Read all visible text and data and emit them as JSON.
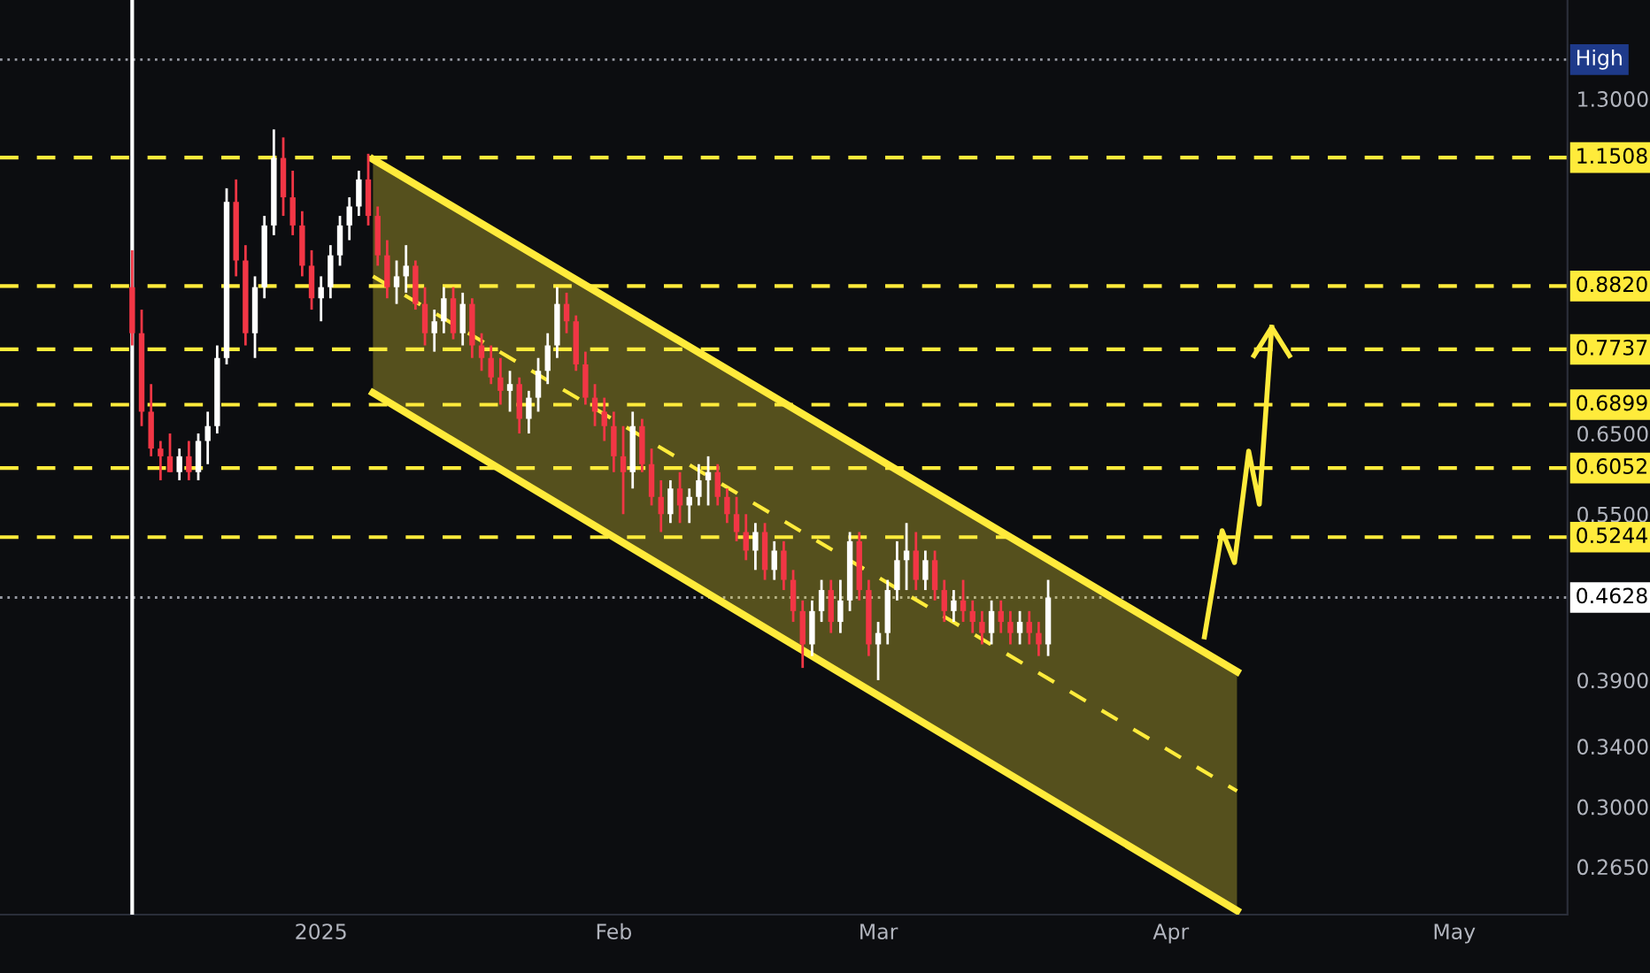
{
  "chart_data": {
    "type": "candlestick",
    "x": [
      "2024-12-12",
      "2024-12-13",
      "2024-12-14",
      "2024-12-15",
      "2024-12-16",
      "2024-12-17",
      "2024-12-18",
      "2024-12-19",
      "2024-12-20",
      "2024-12-21",
      "2024-12-22",
      "2024-12-23",
      "2024-12-24",
      "2024-12-25",
      "2024-12-26",
      "2024-12-27",
      "2024-12-28",
      "2024-12-29",
      "2024-12-30",
      "2024-12-31",
      "2025-01-01",
      "2025-01-02",
      "2025-01-03",
      "2025-01-04",
      "2025-01-05",
      "2025-01-06",
      "2025-01-07",
      "2025-01-08",
      "2025-01-09",
      "2025-01-10",
      "2025-01-11",
      "2025-01-12",
      "2025-01-13",
      "2025-01-14",
      "2025-01-15",
      "2025-01-16",
      "2025-01-17",
      "2025-01-18",
      "2025-01-19",
      "2025-01-20",
      "2025-01-21",
      "2025-01-22",
      "2025-01-23",
      "2025-01-24",
      "2025-01-25",
      "2025-01-26",
      "2025-01-27",
      "2025-01-28",
      "2025-01-29",
      "2025-01-30",
      "2025-01-31",
      "2025-02-01",
      "2025-02-02",
      "2025-02-03",
      "2025-02-04",
      "2025-02-05",
      "2025-02-06",
      "2025-02-07",
      "2025-02-08",
      "2025-02-09",
      "2025-02-10",
      "2025-02-11",
      "2025-02-12",
      "2025-02-13",
      "2025-02-14",
      "2025-02-15",
      "2025-02-16",
      "2025-02-17",
      "2025-02-18",
      "2025-02-19",
      "2025-02-20",
      "2025-02-21",
      "2025-02-22",
      "2025-02-23",
      "2025-02-24",
      "2025-02-25",
      "2025-02-26",
      "2025-02-27",
      "2025-02-28",
      "2025-03-01",
      "2025-03-02",
      "2025-03-03",
      "2025-03-04",
      "2025-03-05",
      "2025-03-06",
      "2025-03-07",
      "2025-03-08",
      "2025-03-09",
      "2025-03-10",
      "2025-03-11",
      "2025-03-12",
      "2025-03-13",
      "2025-03-14",
      "2025-03-15",
      "2025-03-16",
      "2025-03-17",
      "2025-03-18",
      "2025-03-19"
    ],
    "ohlc": [
      [
        0.88,
        0.95,
        0.78,
        0.8
      ],
      [
        0.8,
        0.84,
        0.66,
        0.68
      ],
      [
        0.68,
        0.72,
        0.62,
        0.63
      ],
      [
        0.63,
        0.64,
        0.59,
        0.62
      ],
      [
        0.62,
        0.65,
        0.6,
        0.6
      ],
      [
        0.6,
        0.63,
        0.59,
        0.62
      ],
      [
        0.62,
        0.64,
        0.59,
        0.6
      ],
      [
        0.6,
        0.65,
        0.59,
        0.64
      ],
      [
        0.64,
        0.68,
        0.61,
        0.66
      ],
      [
        0.66,
        0.78,
        0.65,
        0.76
      ],
      [
        0.76,
        1.08,
        0.75,
        1.05
      ],
      [
        1.05,
        1.1,
        0.9,
        0.93
      ],
      [
        0.93,
        0.96,
        0.78,
        0.8
      ],
      [
        0.8,
        0.9,
        0.76,
        0.88
      ],
      [
        0.88,
        1.02,
        0.86,
        1.0
      ],
      [
        1.0,
        1.22,
        0.98,
        1.15
      ],
      [
        1.15,
        1.2,
        1.02,
        1.06
      ],
      [
        1.06,
        1.12,
        0.98,
        1.0
      ],
      [
        1.0,
        1.03,
        0.9,
        0.92
      ],
      [
        0.92,
        0.95,
        0.84,
        0.86
      ],
      [
        0.86,
        0.9,
        0.82,
        0.88
      ],
      [
        0.88,
        0.96,
        0.86,
        0.94
      ],
      [
        0.94,
        1.02,
        0.92,
        1.0
      ],
      [
        1.0,
        1.06,
        0.97,
        1.04
      ],
      [
        1.04,
        1.12,
        1.02,
        1.1
      ],
      [
        1.1,
        1.16,
        1.0,
        1.02
      ],
      [
        1.02,
        1.04,
        0.92,
        0.94
      ],
      [
        0.94,
        0.97,
        0.86,
        0.88
      ],
      [
        0.88,
        0.93,
        0.85,
        0.9
      ],
      [
        0.9,
        0.96,
        0.87,
        0.92
      ],
      [
        0.92,
        0.93,
        0.84,
        0.85
      ],
      [
        0.85,
        0.88,
        0.78,
        0.8
      ],
      [
        0.8,
        0.84,
        0.77,
        0.82
      ],
      [
        0.82,
        0.88,
        0.8,
        0.86
      ],
      [
        0.86,
        0.88,
        0.79,
        0.8
      ],
      [
        0.8,
        0.87,
        0.78,
        0.85
      ],
      [
        0.85,
        0.86,
        0.76,
        0.78
      ],
      [
        0.78,
        0.8,
        0.74,
        0.76
      ],
      [
        0.76,
        0.78,
        0.72,
        0.73
      ],
      [
        0.73,
        0.76,
        0.69,
        0.71
      ],
      [
        0.71,
        0.74,
        0.68,
        0.72
      ],
      [
        0.72,
        0.73,
        0.65,
        0.67
      ],
      [
        0.67,
        0.71,
        0.65,
        0.7
      ],
      [
        0.7,
        0.76,
        0.68,
        0.74
      ],
      [
        0.74,
        0.8,
        0.72,
        0.78
      ],
      [
        0.78,
        0.88,
        0.76,
        0.85
      ],
      [
        0.85,
        0.87,
        0.8,
        0.82
      ],
      [
        0.82,
        0.83,
        0.74,
        0.75
      ],
      [
        0.75,
        0.77,
        0.69,
        0.7
      ],
      [
        0.7,
        0.72,
        0.66,
        0.68
      ],
      [
        0.68,
        0.7,
        0.64,
        0.66
      ],
      [
        0.66,
        0.68,
        0.6,
        0.62
      ],
      [
        0.62,
        0.66,
        0.55,
        0.6
      ],
      [
        0.6,
        0.68,
        0.58,
        0.66
      ],
      [
        0.66,
        0.67,
        0.6,
        0.61
      ],
      [
        0.61,
        0.63,
        0.56,
        0.57
      ],
      [
        0.57,
        0.59,
        0.53,
        0.55
      ],
      [
        0.55,
        0.59,
        0.54,
        0.58
      ],
      [
        0.58,
        0.6,
        0.54,
        0.56
      ],
      [
        0.56,
        0.58,
        0.54,
        0.57
      ],
      [
        0.57,
        0.61,
        0.56,
        0.59
      ],
      [
        0.59,
        0.62,
        0.56,
        0.6
      ],
      [
        0.6,
        0.61,
        0.56,
        0.57
      ],
      [
        0.57,
        0.58,
        0.54,
        0.55
      ],
      [
        0.55,
        0.57,
        0.52,
        0.53
      ],
      [
        0.53,
        0.55,
        0.5,
        0.51
      ],
      [
        0.51,
        0.54,
        0.49,
        0.53
      ],
      [
        0.53,
        0.54,
        0.48,
        0.49
      ],
      [
        0.49,
        0.52,
        0.48,
        0.51
      ],
      [
        0.51,
        0.52,
        0.47,
        0.48
      ],
      [
        0.48,
        0.49,
        0.44,
        0.45
      ],
      [
        0.45,
        0.46,
        0.4,
        0.42
      ],
      [
        0.42,
        0.46,
        0.41,
        0.45
      ],
      [
        0.45,
        0.48,
        0.44,
        0.47
      ],
      [
        0.47,
        0.48,
        0.43,
        0.44
      ],
      [
        0.44,
        0.48,
        0.43,
        0.46
      ],
      [
        0.46,
        0.53,
        0.45,
        0.52
      ],
      [
        0.52,
        0.53,
        0.46,
        0.47
      ],
      [
        0.47,
        0.48,
        0.41,
        0.42
      ],
      [
        0.42,
        0.44,
        0.39,
        0.43
      ],
      [
        0.43,
        0.48,
        0.42,
        0.47
      ],
      [
        0.47,
        0.52,
        0.46,
        0.5
      ],
      [
        0.5,
        0.54,
        0.47,
        0.51
      ],
      [
        0.51,
        0.53,
        0.47,
        0.48
      ],
      [
        0.48,
        0.51,
        0.47,
        0.5
      ],
      [
        0.5,
        0.51,
        0.46,
        0.47
      ],
      [
        0.47,
        0.48,
        0.44,
        0.45
      ],
      [
        0.45,
        0.47,
        0.44,
        0.46
      ],
      [
        0.46,
        0.48,
        0.44,
        0.45
      ],
      [
        0.45,
        0.46,
        0.43,
        0.44
      ],
      [
        0.44,
        0.45,
        0.42,
        0.43
      ],
      [
        0.43,
        0.46,
        0.42,
        0.45
      ],
      [
        0.45,
        0.46,
        0.43,
        0.44
      ],
      [
        0.44,
        0.45,
        0.42,
        0.43
      ],
      [
        0.43,
        0.45,
        0.42,
        0.44
      ],
      [
        0.44,
        0.45,
        0.42,
        0.43
      ],
      [
        0.43,
        0.44,
        0.41,
        0.42
      ],
      [
        0.42,
        0.48,
        0.41,
        0.4628
      ]
    ],
    "colors": [
      "#f23645",
      "#f23645",
      "#f23645",
      "#f23645",
      "#f23645",
      "#ffffff",
      "#f23645",
      "#ffffff",
      "#ffffff",
      "#ffffff",
      "#ffffff",
      "#f23645",
      "#f23645",
      "#ffffff",
      "#ffffff",
      "#ffffff",
      "#f23645",
      "#f23645",
      "#f23645",
      "#f23645",
      "#ffffff",
      "#ffffff",
      "#ffffff",
      "#ffffff",
      "#ffffff",
      "#f23645",
      "#f23645",
      "#f23645",
      "#ffffff",
      "#ffffff",
      "#f23645",
      "#f23645",
      "#ffffff",
      "#ffffff",
      "#f23645",
      "#ffffff",
      "#f23645",
      "#f23645",
      "#f23645",
      "#f23645",
      "#ffffff",
      "#f23645",
      "#ffffff",
      "#ffffff",
      "#ffffff",
      "#ffffff",
      "#f23645",
      "#f23645",
      "#f23645",
      "#f23645",
      "#f23645",
      "#f23645",
      "#f23645",
      "#ffffff",
      "#f23645",
      "#f23645",
      "#f23645",
      "#ffffff",
      "#f23645",
      "#ffffff",
      "#ffffff",
      "#ffffff",
      "#f23645",
      "#f23645",
      "#f23645",
      "#f23645",
      "#ffffff",
      "#f23645",
      "#ffffff",
      "#f23645",
      "#f23645",
      "#f23645",
      "#ffffff",
      "#ffffff",
      "#f23645",
      "#ffffff",
      "#ffffff",
      "#f23645",
      "#f23645",
      "#ffffff",
      "#ffffff",
      "#ffffff",
      "#ffffff",
      "#f23645",
      "#ffffff",
      "#f23645",
      "#f23645",
      "#ffffff",
      "#f23645",
      "#f23645",
      "#f23645",
      "#ffffff",
      "#f23645",
      "#f23645",
      "#ffffff",
      "#f23645",
      "#f23645",
      "#ffffff"
    ],
    "series": [
      {
        "type": "line",
        "x": [
          "2025-01-06T12:00",
          "2025-04-08"
        ],
        "values": [
          1.147,
          0.397
        ],
        "color": "#ffeb3b",
        "line_style": "solid"
      },
      {
        "type": "line",
        "x": [
          "2025-01-06T12:00",
          "2025-04-08"
        ],
        "values": [
          0.707,
          0.242
        ],
        "color": "#ffeb3b",
        "line_style": "solid"
      },
      {
        "type": "line",
        "x": [
          "2025-01-06T12:00",
          "2025-04-08"
        ],
        "values": [
          0.9,
          0.31
        ],
        "lower": [
          0.707,
          0.242
        ],
        "upper": [
          1.147,
          0.397
        ],
        "color": "#ffeb3b",
        "line_style": "dashed"
      }
    ],
    "ref_lines": [
      {
        "axis": "y",
        "value": 1.41,
        "label": "High",
        "color": "#9598a1",
        "line_style": "dotted"
      },
      {
        "axis": "y",
        "value": 1.1508,
        "label": "1.1508",
        "color": "#ffeb3b",
        "line_style": "dashed"
      },
      {
        "axis": "y",
        "value": 0.882,
        "label": "0.8820",
        "color": "#ffeb3b",
        "line_style": "dashed"
      },
      {
        "axis": "y",
        "value": 0.7737,
        "label": "0.7737",
        "color": "#ffeb3b",
        "line_style": "dashed"
      },
      {
        "axis": "y",
        "value": 0.6899,
        "label": "0.6899",
        "color": "#ffeb3b",
        "line_style": "dashed"
      },
      {
        "axis": "y",
        "value": 0.6052,
        "label": "0.6052",
        "color": "#ffeb3b",
        "line_style": "dashed"
      },
      {
        "axis": "y",
        "value": 0.5244,
        "label": "0.5244",
        "color": "#ffeb3b",
        "line_style": "dashed"
      },
      {
        "axis": "y",
        "value": 0.4628,
        "label": "0.4628",
        "color": "#9598a1",
        "line_style": "dotted"
      },
      {
        "axis": "x",
        "value": "2024-12-12",
        "color": "#ffffff",
        "line_style": "solid"
      }
    ],
    "xlim": [
      "2024-11-28",
      "2025-05-13"
    ],
    "xticks": [
      {
        "value": "2025-01-01",
        "label": "2025"
      },
      {
        "value": "2025-02-01",
        "label": "Feb"
      },
      {
        "value": "2025-03-01",
        "label": "Mar"
      },
      {
        "value": "2025-04-01",
        "label": "Apr"
      },
      {
        "value": "2025-05-01",
        "label": "May"
      }
    ],
    "ylim": [
      0.24,
      1.595
    ],
    "log": true,
    "yticks": [
      {
        "value": 1.3,
        "label": "1.3000"
      },
      {
        "value": 0.65,
        "label": "0.6500"
      },
      {
        "value": 0.55,
        "label": "0.5500"
      },
      {
        "value": 0.39,
        "label": "0.3900"
      },
      {
        "value": 0.34,
        "label": "0.3400"
      },
      {
        "value": 0.3,
        "label": "0.3000"
      },
      {
        "value": 0.265,
        "label": "0.2650"
      }
    ],
    "grid": false
  }
}
